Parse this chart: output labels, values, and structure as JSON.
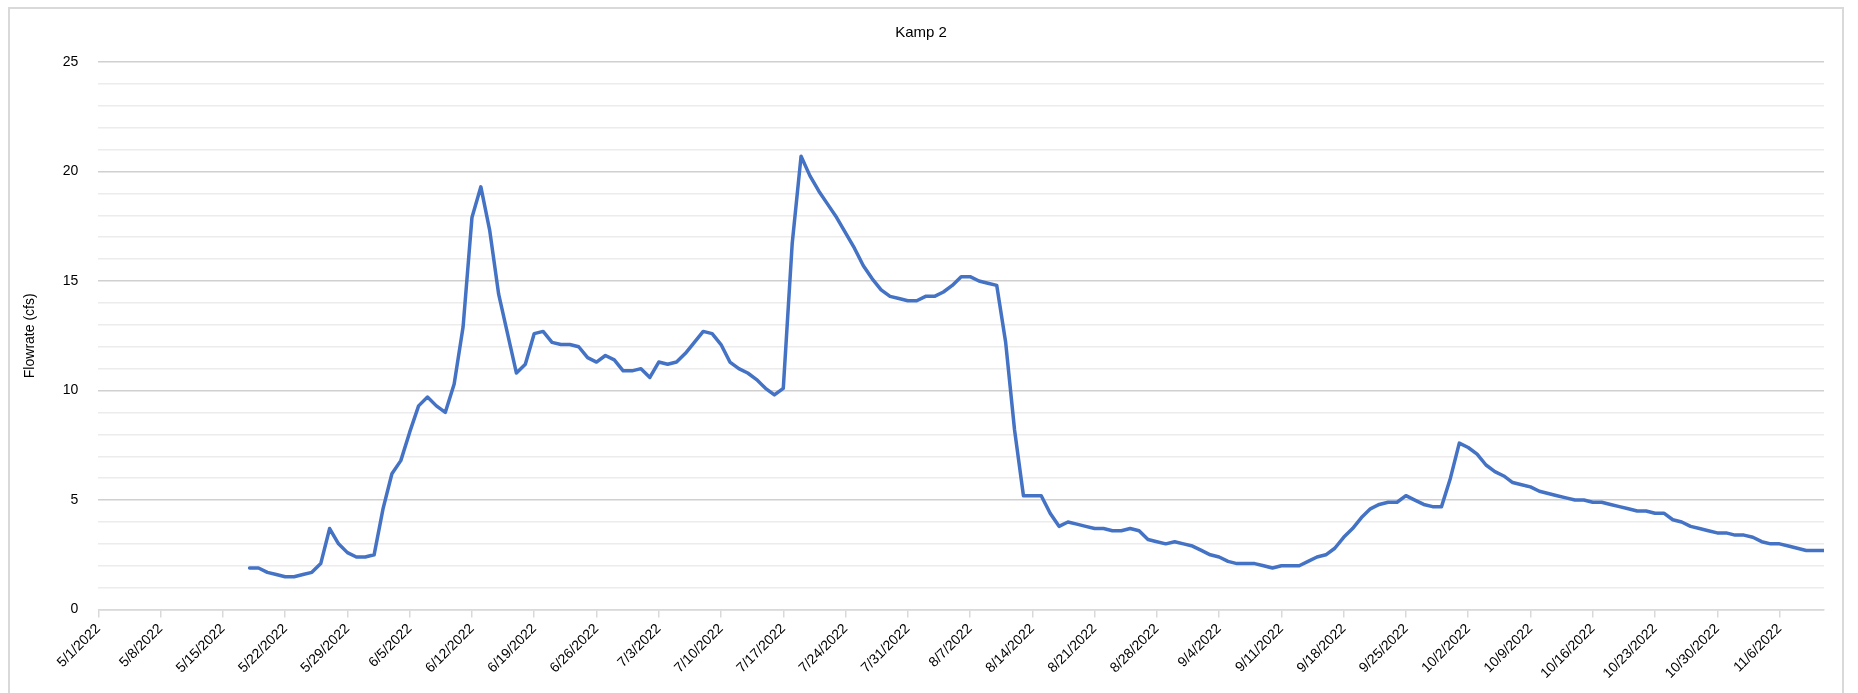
{
  "chart_data": {
    "type": "line",
    "title": "Kamp 2",
    "ylabel": "Flowrate (cfs)",
    "grid": "y",
    "legend": false,
    "marker": "none",
    "line_style": "solid",
    "xlim": [
      "2022-05-01",
      "2022-11-11"
    ],
    "xticks": [
      {
        "value": "2022-05-01",
        "label": "5/1/2022"
      },
      {
        "value": "2022-05-08",
        "label": "5/8/2022"
      },
      {
        "value": "2022-05-15",
        "label": "5/15/2022"
      },
      {
        "value": "2022-05-22",
        "label": "5/22/2022"
      },
      {
        "value": "2022-05-29",
        "label": "5/29/2022"
      },
      {
        "value": "2022-06-05",
        "label": "6/5/2022"
      },
      {
        "value": "2022-06-12",
        "label": "6/12/2022"
      },
      {
        "value": "2022-06-19",
        "label": "6/19/2022"
      },
      {
        "value": "2022-06-26",
        "label": "6/26/2022"
      },
      {
        "value": "2022-07-03",
        "label": "7/3/2022"
      },
      {
        "value": "2022-07-10",
        "label": "7/10/2022"
      },
      {
        "value": "2022-07-17",
        "label": "7/17/2022"
      },
      {
        "value": "2022-07-24",
        "label": "7/24/2022"
      },
      {
        "value": "2022-07-31",
        "label": "7/31/2022"
      },
      {
        "value": "2022-08-07",
        "label": "8/7/2022"
      },
      {
        "value": "2022-08-14",
        "label": "8/14/2022"
      },
      {
        "value": "2022-08-21",
        "label": "8/21/2022"
      },
      {
        "value": "2022-08-28",
        "label": "8/28/2022"
      },
      {
        "value": "2022-09-04",
        "label": "9/4/2022"
      },
      {
        "value": "2022-09-11",
        "label": "9/11/2022"
      },
      {
        "value": "2022-09-18",
        "label": "9/18/2022"
      },
      {
        "value": "2022-09-25",
        "label": "9/25/2022"
      },
      {
        "value": "2022-10-02",
        "label": "10/2/2022"
      },
      {
        "value": "2022-10-09",
        "label": "10/9/2022"
      },
      {
        "value": "2022-10-16",
        "label": "10/16/2022"
      },
      {
        "value": "2022-10-23",
        "label": "10/23/2022"
      },
      {
        "value": "2022-10-30",
        "label": "10/30/2022"
      },
      {
        "value": "2022-11-06",
        "label": "11/6/2022"
      }
    ],
    "ylim": [
      0,
      25
    ],
    "yticks": [
      0,
      {
        "value": 1,
        "label": null
      },
      {
        "value": 2,
        "label": null
      },
      {
        "value": 3,
        "label": null
      },
      {
        "value": 4,
        "label": null
      },
      5,
      {
        "value": 6,
        "label": null
      },
      {
        "value": 7,
        "label": null
      },
      {
        "value": 8,
        "label": null
      },
      {
        "value": 9,
        "label": null
      },
      10,
      {
        "value": 11,
        "label": null
      },
      {
        "value": 12,
        "label": null
      },
      {
        "value": 13,
        "label": null
      },
      {
        "value": 14,
        "label": null
      },
      15,
      {
        "value": 16,
        "label": null
      },
      {
        "value": 17,
        "label": null
      },
      {
        "value": 18,
        "label": null
      },
      {
        "value": 19,
        "label": null
      },
      20,
      {
        "value": 21,
        "label": null
      },
      {
        "value": 22,
        "label": null
      },
      {
        "value": 23,
        "label": null
      },
      {
        "value": 24,
        "label": null
      },
      25
    ],
    "series": [
      {
        "color": "#4472c4",
        "x": [
          "2022-05-18",
          "2022-05-19",
          "2022-05-20",
          "2022-05-21",
          "2022-05-22",
          "2022-05-23",
          "2022-05-24",
          "2022-05-25",
          "2022-05-26",
          "2022-05-27",
          "2022-05-28",
          "2022-05-29",
          "2022-05-30",
          "2022-05-31",
          "2022-06-01",
          "2022-06-02",
          "2022-06-03",
          "2022-06-04",
          "2022-06-05",
          "2022-06-06",
          "2022-06-07",
          "2022-06-08",
          "2022-06-09",
          "2022-06-10",
          "2022-06-11",
          "2022-06-12",
          "2022-06-13",
          "2022-06-14",
          "2022-06-15",
          "2022-06-16",
          "2022-06-17",
          "2022-06-18",
          "2022-06-19",
          "2022-06-20",
          "2022-06-21",
          "2022-06-22",
          "2022-06-23",
          "2022-06-24",
          "2022-06-25",
          "2022-06-26",
          "2022-06-27",
          "2022-06-28",
          "2022-06-29",
          "2022-06-30",
          "2022-07-01",
          "2022-07-02",
          "2022-07-03",
          "2022-07-04",
          "2022-07-05",
          "2022-07-06",
          "2022-07-07",
          "2022-07-08",
          "2022-07-09",
          "2022-07-10",
          "2022-07-11",
          "2022-07-12",
          "2022-07-13",
          "2022-07-14",
          "2022-07-15",
          "2022-07-16",
          "2022-07-17",
          "2022-07-18",
          "2022-07-19",
          "2022-07-20",
          "2022-07-21",
          "2022-07-22",
          "2022-07-23",
          "2022-07-24",
          "2022-07-25",
          "2022-07-26",
          "2022-07-27",
          "2022-07-28",
          "2022-07-29",
          "2022-07-30",
          "2022-07-31",
          "2022-08-01",
          "2022-08-02",
          "2022-08-03",
          "2022-08-04",
          "2022-08-05",
          "2022-08-06",
          "2022-08-07",
          "2022-08-08",
          "2022-08-09",
          "2022-08-10",
          "2022-08-11",
          "2022-08-12",
          "2022-08-13",
          "2022-08-14",
          "2022-08-15",
          "2022-08-16",
          "2022-08-17",
          "2022-08-18",
          "2022-08-19",
          "2022-08-20",
          "2022-08-21",
          "2022-08-22",
          "2022-08-23",
          "2022-08-24",
          "2022-08-25",
          "2022-08-26",
          "2022-08-27",
          "2022-08-28",
          "2022-08-29",
          "2022-08-30",
          "2022-08-31",
          "2022-09-01",
          "2022-09-02",
          "2022-09-03",
          "2022-09-04",
          "2022-09-05",
          "2022-09-06",
          "2022-09-07",
          "2022-09-08",
          "2022-09-09",
          "2022-09-10",
          "2022-09-11",
          "2022-09-12",
          "2022-09-13",
          "2022-09-14",
          "2022-09-15",
          "2022-09-16",
          "2022-09-17",
          "2022-09-18",
          "2022-09-19",
          "2022-09-20",
          "2022-09-21",
          "2022-09-22",
          "2022-09-23",
          "2022-09-24",
          "2022-09-25",
          "2022-09-26",
          "2022-09-27",
          "2022-09-28",
          "2022-09-29",
          "2022-09-30",
          "2022-10-01",
          "2022-10-02",
          "2022-10-03",
          "2022-10-04",
          "2022-10-05",
          "2022-10-06",
          "2022-10-07",
          "2022-10-08",
          "2022-10-09",
          "2022-10-10",
          "2022-10-11",
          "2022-10-12",
          "2022-10-13",
          "2022-10-14",
          "2022-10-15",
          "2022-10-16",
          "2022-10-17",
          "2022-10-18",
          "2022-10-19",
          "2022-10-20",
          "2022-10-21",
          "2022-10-22",
          "2022-10-23",
          "2022-10-24",
          "2022-10-25",
          "2022-10-26",
          "2022-10-27",
          "2022-10-28",
          "2022-10-29",
          "2022-10-30",
          "2022-10-31",
          "2022-11-01",
          "2022-11-02",
          "2022-11-03",
          "2022-11-04",
          "2022-11-05",
          "2022-11-06",
          "2022-11-07",
          "2022-11-08",
          "2022-11-09",
          "2022-11-10",
          "2022-11-11"
        ],
        "values": [
          1.9,
          1.9,
          1.7,
          1.6,
          1.5,
          1.5,
          1.6,
          1.7,
          2.1,
          3.7,
          3.0,
          2.6,
          2.4,
          2.4,
          2.5,
          4.6,
          6.2,
          6.8,
          8.1,
          9.3,
          9.7,
          9.3,
          9.0,
          10.3,
          12.9,
          17.9,
          19.3,
          17.3,
          14.4,
          12.6,
          10.8,
          11.2,
          12.6,
          12.7,
          12.2,
          12.1,
          12.1,
          12.0,
          11.5,
          11.3,
          11.6,
          11.4,
          10.9,
          10.9,
          11.0,
          10.6,
          11.3,
          11.2,
          11.3,
          11.7,
          12.2,
          12.7,
          12.6,
          12.1,
          11.3,
          11.0,
          10.8,
          10.5,
          10.1,
          9.8,
          10.1,
          16.7,
          20.7,
          19.8,
          19.1,
          18.5,
          17.9,
          17.2,
          16.5,
          15.7,
          15.1,
          14.6,
          14.3,
          14.2,
          14.1,
          14.1,
          14.3,
          14.3,
          14.5,
          14.8,
          15.2,
          15.2,
          15.0,
          14.9,
          14.8,
          12.2,
          8.2,
          5.2,
          5.2,
          5.2,
          4.4,
          3.8,
          4.0,
          3.9,
          3.8,
          3.7,
          3.7,
          3.6,
          3.6,
          3.7,
          3.6,
          3.2,
          3.1,
          3.0,
          3.1,
          3.0,
          2.9,
          2.7,
          2.5,
          2.4,
          2.2,
          2.1,
          2.1,
          2.1,
          2.0,
          1.9,
          2.0,
          2.0,
          2.0,
          2.2,
          2.4,
          2.5,
          2.8,
          3.3,
          3.7,
          4.2,
          4.6,
          4.8,
          4.9,
          4.9,
          5.2,
          5.0,
          4.8,
          4.7,
          4.7,
          6.0,
          7.6,
          7.4,
          7.1,
          6.6,
          6.3,
          6.1,
          5.8,
          5.7,
          5.6,
          5.4,
          5.3,
          5.2,
          5.1,
          5.0,
          5.0,
          4.9,
          4.9,
          4.8,
          4.7,
          4.6,
          4.5,
          4.5,
          4.4,
          4.4,
          4.1,
          4.0,
          3.8,
          3.7,
          3.6,
          3.5,
          3.5,
          3.4,
          3.4,
          3.3,
          3.1,
          3.0,
          3.0,
          2.9,
          2.8,
          2.7,
          2.7,
          2.7
        ]
      }
    ]
  }
}
